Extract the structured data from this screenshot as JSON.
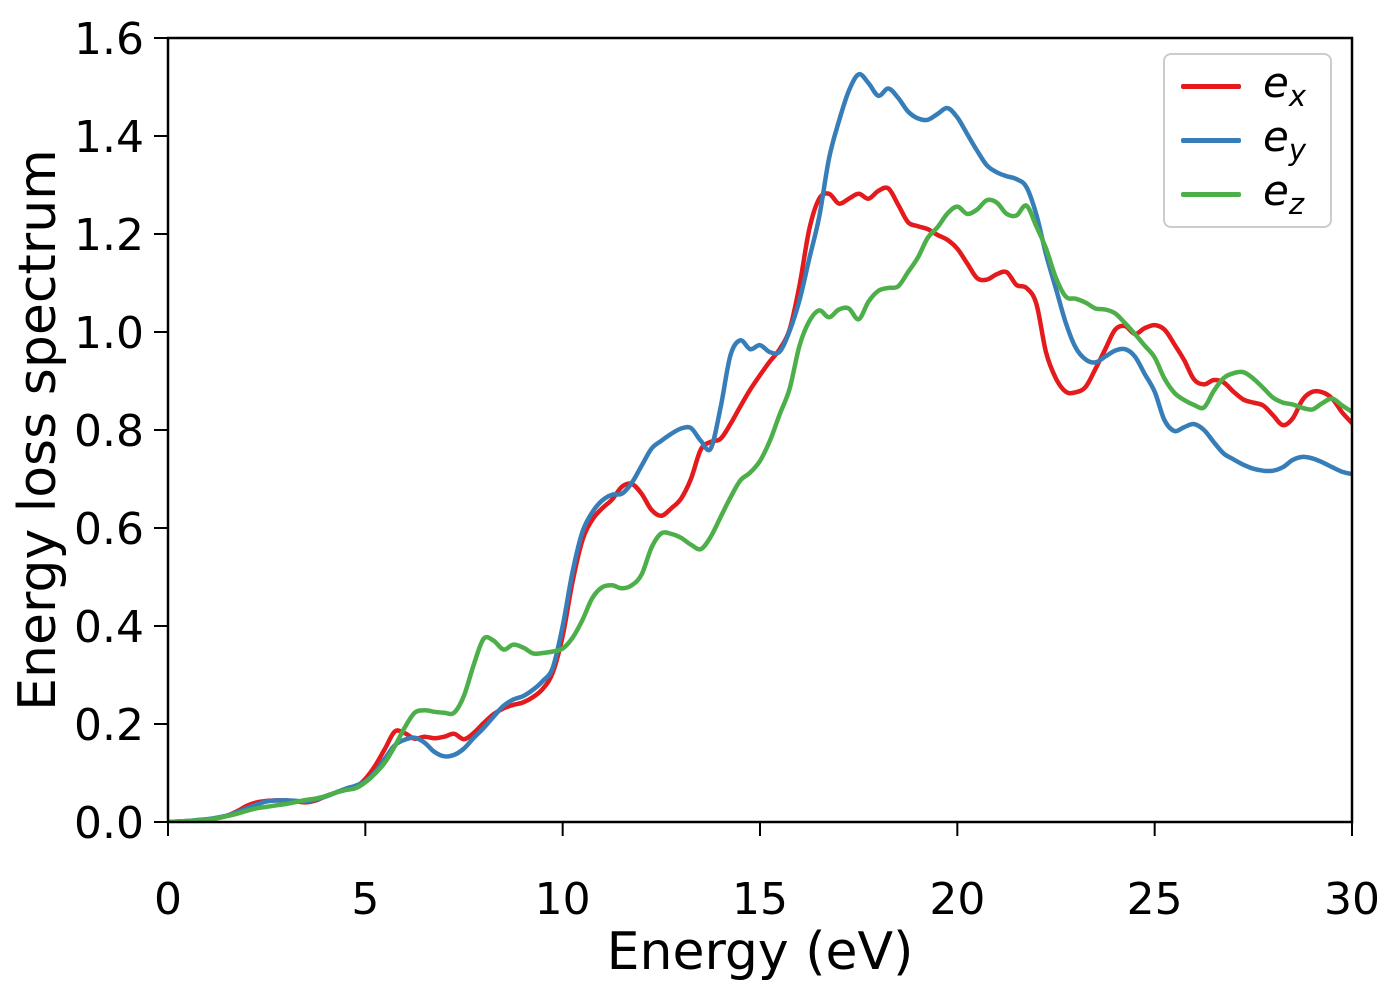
{
  "chart_data": {
    "type": "line",
    "title": "",
    "xlabel": "Energy (eV)",
    "ylabel": "Energy loss spectrum",
    "xlim": [
      0,
      30
    ],
    "ylim": [
      0,
      1.6
    ],
    "grid": false,
    "legend_position": "upper right",
    "xticks": {
      "values": [
        0,
        5,
        10,
        15,
        20,
        25,
        30
      ],
      "labels": [
        "0",
        "5",
        "10",
        "15",
        "20",
        "25",
        "30"
      ]
    },
    "yticks": {
      "values": [
        0.0,
        0.2,
        0.4,
        0.6,
        0.8,
        1.0,
        1.2,
        1.4,
        1.6
      ],
      "labels": [
        "0.0",
        "0.2",
        "0.4",
        "0.6",
        "0.8",
        "1.0",
        "1.2",
        "1.4",
        "1.6"
      ]
    },
    "x_start": 0,
    "x_step": 0.25,
    "frame_color": "#000000",
    "series": [
      {
        "name": "e_x",
        "base": "e",
        "sub": "x",
        "color": "#e41a1c",
        "values": [
          0.0,
          0.001,
          0.002,
          0.003,
          0.005,
          0.008,
          0.013,
          0.022,
          0.033,
          0.04,
          0.043,
          0.044,
          0.044,
          0.042,
          0.04,
          0.044,
          0.053,
          0.06,
          0.066,
          0.071,
          0.088,
          0.115,
          0.15,
          0.185,
          0.181,
          0.17,
          0.174,
          0.171,
          0.174,
          0.18,
          0.169,
          0.182,
          0.202,
          0.22,
          0.232,
          0.239,
          0.244,
          0.255,
          0.272,
          0.305,
          0.38,
          0.49,
          0.575,
          0.617,
          0.64,
          0.658,
          0.684,
          0.69,
          0.67,
          0.637,
          0.625,
          0.64,
          0.66,
          0.7,
          0.76,
          0.776,
          0.782,
          0.812,
          0.848,
          0.882,
          0.912,
          0.94,
          0.965,
          1.005,
          1.095,
          1.21,
          1.272,
          1.282,
          1.262,
          1.272,
          1.282,
          1.272,
          1.288,
          1.293,
          1.26,
          1.224,
          1.216,
          1.21,
          1.198,
          1.188,
          1.17,
          1.14,
          1.11,
          1.107,
          1.118,
          1.122,
          1.096,
          1.09,
          1.058,
          0.958,
          0.905,
          0.878,
          0.877,
          0.888,
          0.925,
          0.965,
          1.005,
          1.012,
          0.996,
          1.008,
          1.014,
          1.005,
          0.975,
          0.942,
          0.903,
          0.893,
          0.902,
          0.897,
          0.878,
          0.862,
          0.856,
          0.85,
          0.83,
          0.81,
          0.824,
          0.862,
          0.878,
          0.877,
          0.864,
          0.836,
          0.814
        ]
      },
      {
        "name": "e_y",
        "base": "e",
        "sub": "y",
        "color": "#377eb8",
        "values": [
          0.0,
          0.001,
          0.002,
          0.004,
          0.006,
          0.009,
          0.013,
          0.02,
          0.028,
          0.036,
          0.042,
          0.044,
          0.044,
          0.043,
          0.042,
          0.046,
          0.052,
          0.06,
          0.068,
          0.074,
          0.083,
          0.102,
          0.13,
          0.157,
          0.168,
          0.172,
          0.162,
          0.143,
          0.134,
          0.137,
          0.15,
          0.172,
          0.192,
          0.215,
          0.237,
          0.25,
          0.257,
          0.27,
          0.288,
          0.315,
          0.4,
          0.51,
          0.592,
          0.632,
          0.656,
          0.668,
          0.67,
          0.692,
          0.727,
          0.762,
          0.778,
          0.792,
          0.803,
          0.804,
          0.778,
          0.762,
          0.845,
          0.952,
          0.983,
          0.965,
          0.973,
          0.959,
          0.96,
          1.002,
          1.065,
          1.15,
          1.235,
          1.355,
          1.43,
          1.492,
          1.526,
          1.508,
          1.482,
          1.497,
          1.478,
          1.45,
          1.436,
          1.433,
          1.445,
          1.457,
          1.438,
          1.404,
          1.37,
          1.34,
          1.326,
          1.318,
          1.312,
          1.296,
          1.24,
          1.158,
          1.088,
          1.018,
          0.968,
          0.944,
          0.938,
          0.95,
          0.962,
          0.965,
          0.95,
          0.914,
          0.878,
          0.82,
          0.798,
          0.806,
          0.812,
          0.8,
          0.775,
          0.752,
          0.74,
          0.729,
          0.721,
          0.717,
          0.717,
          0.724,
          0.739,
          0.745,
          0.742,
          0.734,
          0.724,
          0.715,
          0.71
        ]
      },
      {
        "name": "e_z",
        "base": "e",
        "sub": "z",
        "color": "#4daf4a",
        "values": [
          0.0,
          0.001,
          0.002,
          0.003,
          0.005,
          0.008,
          0.012,
          0.017,
          0.023,
          0.028,
          0.031,
          0.034,
          0.037,
          0.041,
          0.045,
          0.048,
          0.053,
          0.06,
          0.065,
          0.069,
          0.081,
          0.099,
          0.122,
          0.155,
          0.193,
          0.223,
          0.228,
          0.225,
          0.223,
          0.223,
          0.258,
          0.322,
          0.374,
          0.37,
          0.352,
          0.362,
          0.356,
          0.344,
          0.345,
          0.348,
          0.354,
          0.376,
          0.412,
          0.457,
          0.479,
          0.483,
          0.477,
          0.483,
          0.505,
          0.56,
          0.589,
          0.588,
          0.58,
          0.566,
          0.557,
          0.582,
          0.622,
          0.662,
          0.697,
          0.713,
          0.737,
          0.778,
          0.832,
          0.884,
          0.972,
          1.022,
          1.044,
          1.03,
          1.046,
          1.048,
          1.026,
          1.062,
          1.084,
          1.09,
          1.093,
          1.122,
          1.152,
          1.192,
          1.214,
          1.242,
          1.256,
          1.241,
          1.25,
          1.269,
          1.264,
          1.241,
          1.238,
          1.258,
          1.216,
          1.17,
          1.11,
          1.072,
          1.068,
          1.06,
          1.048,
          1.046,
          1.038,
          1.018,
          0.996,
          0.972,
          0.948,
          0.905,
          0.876,
          0.861,
          0.851,
          0.846,
          0.88,
          0.906,
          0.916,
          0.918,
          0.905,
          0.886,
          0.866,
          0.856,
          0.852,
          0.845,
          0.842,
          0.855,
          0.864,
          0.85,
          0.837
        ]
      }
    ]
  }
}
